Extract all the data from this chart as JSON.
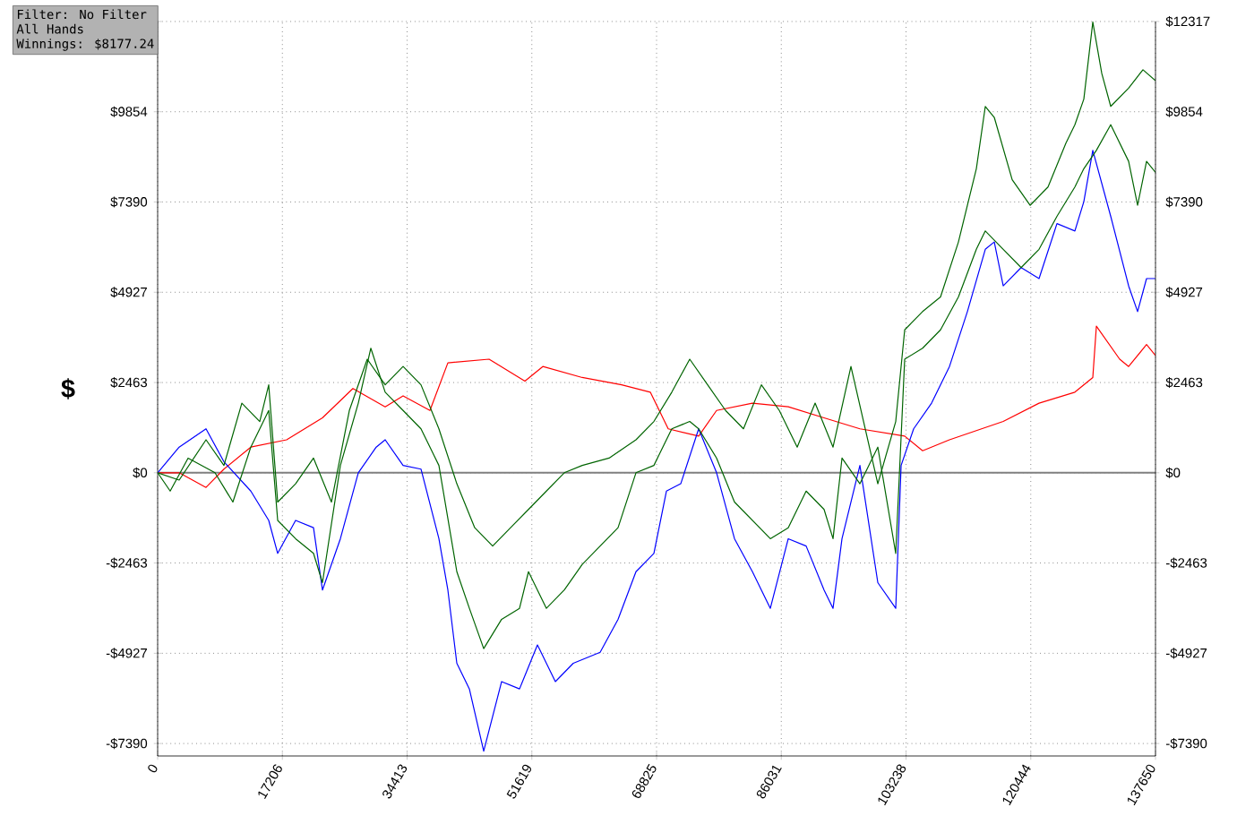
{
  "chart_data": {
    "type": "line",
    "ylabel": "$",
    "annotations": [
      "Filter: No Filter",
      "All Hands",
      "Winnings: $8177.24"
    ],
    "xlim": [
      0,
      137650
    ],
    "xticks": [
      0,
      17206,
      34413,
      51619,
      68825,
      86031,
      103238,
      120444,
      137650
    ],
    "ylim": [
      -7730,
      12317
    ],
    "yticks": [
      {
        "value": -7390,
        "label": "-$7390"
      },
      {
        "value": -4927,
        "label": "-$4927"
      },
      {
        "value": -2463,
        "label": "-$2463"
      },
      {
        "value": 0,
        "label": "$0"
      },
      {
        "value": 2463,
        "label": "$2463"
      },
      {
        "value": 4927,
        "label": "$4927"
      },
      {
        "value": 7390,
        "label": "$7390"
      },
      {
        "value": 9854,
        "label": "$9854"
      },
      {
        "value": 12317,
        "label": null
      }
    ],
    "y2lim": [
      -7730,
      12317
    ],
    "y2ticks": [
      {
        "value": -7390,
        "label": "-$7390"
      },
      {
        "value": -4927,
        "label": "-$4927"
      },
      {
        "value": -2463,
        "label": "-$2463"
      },
      {
        "value": 0,
        "label": "$0"
      },
      {
        "value": 2463,
        "label": "$2463"
      },
      {
        "value": 4927,
        "label": "$4927"
      },
      {
        "value": 7390,
        "label": "$7390"
      },
      {
        "value": 9854,
        "label": "$9854"
      },
      {
        "value": 12317,
        "label": "$12317"
      }
    ],
    "grid": true,
    "marker": "none",
    "line_style": "solid",
    "ref_lines": [
      {
        "axis": "y",
        "value": 0,
        "color": "#808080"
      }
    ],
    "series": [
      {
        "color": "#ff0000",
        "x": [
          0,
          2966,
          6673,
          9144,
          12851,
          17793,
          22736,
          26937,
          31386,
          33857,
          37564,
          40035,
          45719,
          50662,
          53133,
          58570,
          64007,
          67961,
          70432,
          74633,
          77105,
          82047,
          86990,
          91932,
          96875,
          103053,
          105525,
          109231,
          116645,
          121588,
          126531,
          129002,
          129496,
          132709,
          133945,
          136416,
          137650
        ],
        "values": [
          0,
          0,
          -400,
          100,
          700,
          900,
          1500,
          2300,
          1800,
          2100,
          1700,
          3000,
          3100,
          2500,
          2900,
          2600,
          2400,
          2200,
          1200,
          1000,
          1700,
          1900,
          1800,
          1500,
          1200,
          1000,
          600,
          900,
          1400,
          1900,
          2200,
          2600,
          4000,
          3100,
          2900,
          3500,
          3200
        ]
      },
      {
        "color": "#0000ff",
        "x": [
          0,
          2966,
          6673,
          9144,
          12851,
          15322,
          16558,
          19029,
          21500,
          22736,
          25207,
          27679,
          30150,
          31386,
          33857,
          36328,
          38799,
          40035,
          41271,
          43001,
          44978,
          47449,
          49920,
          52392,
          54863,
          57334,
          61041,
          63512,
          65984,
          68455,
          70185,
          72162,
          74633,
          77105,
          79576,
          82047,
          83283,
          84518,
          86990,
          89461,
          91932,
          93168,
          94404,
          96875,
          99346,
          101818,
          102559,
          104289,
          106760,
          109231,
          111703,
          114174,
          115410,
          116645,
          119117,
          121588,
          124059,
          126531,
          127766,
          129002,
          131474,
          133945,
          135181,
          136416,
          137650
        ],
        "values": [
          0,
          700,
          1200,
          300,
          -500,
          -1300,
          -2200,
          -1300,
          -1500,
          -3200,
          -1800,
          0,
          700,
          900,
          200,
          100,
          -1800,
          -3200,
          -5200,
          -5900,
          -7600,
          -5700,
          -5900,
          -4700,
          -5700,
          -5200,
          -4900,
          -4000,
          -2700,
          -2200,
          -500,
          -300,
          1200,
          0,
          -1800,
          -2700,
          -3200,
          -3700,
          -1800,
          -2000,
          -3200,
          -3700,
          -1800,
          200,
          -3000,
          -3700,
          200,
          1200,
          1900,
          2900,
          4400,
          6100,
          6300,
          5100,
          5600,
          5300,
          6800,
          6600,
          7400,
          8800,
          7000,
          5100,
          4400,
          5300,
          5300
        ]
      },
      {
        "color": "#006400",
        "x": [
          0,
          2966,
          6673,
          9144,
          11615,
          14086,
          15322,
          16558,
          19029,
          21500,
          23972,
          26443,
          28914,
          31386,
          33857,
          36328,
          38799,
          41271,
          43742,
          46213,
          48685,
          51156,
          53627,
          56099,
          58570,
          62277,
          65984,
          68455,
          70926,
          73398,
          75869,
          78340,
          80812,
          83283,
          85754,
          88225,
          90697,
          93168,
          95639,
          99346,
          101818,
          103053,
          105525,
          107996,
          110467,
          112938,
          114174,
          115410,
          117881,
          120352,
          122824,
          125295,
          126531,
          127766,
          129002,
          130238,
          131474,
          133945,
          135922,
          137650
        ],
        "values": [
          0,
          -200,
          900,
          200,
          1900,
          1400,
          2400,
          -800,
          -300,
          400,
          -800,
          1700,
          3100,
          2400,
          2900,
          2400,
          1200,
          -300,
          -1500,
          -2000,
          -1500,
          -1000,
          -500,
          0,
          200,
          400,
          900,
          1400,
          2200,
          3100,
          2400,
          1700,
          1200,
          2400,
          1700,
          700,
          1900,
          700,
          2900,
          -300,
          1400,
          3900,
          4400,
          4800,
          6300,
          8300,
          10000,
          9700,
          8000,
          7300,
          7800,
          9000,
          9500,
          10200,
          12300,
          10900,
          10000,
          10500,
          11000,
          10700
        ]
      },
      {
        "color": "#006400",
        "x": [
          0,
          1730,
          4201,
          7908,
          10379,
          12851,
          15322,
          16558,
          19029,
          21500,
          22736,
          25207,
          27679,
          29408,
          31386,
          33857,
          36328,
          38799,
          41271,
          43001,
          44978,
          47449,
          49920,
          51156,
          53627,
          56099,
          58570,
          61041,
          63512,
          65984,
          68455,
          70926,
          73398,
          74633,
          77105,
          79576,
          82047,
          84518,
          86990,
          89461,
          91932,
          93168,
          94404,
          96875,
          99346,
          101818,
          103053,
          105525,
          107996,
          110467,
          112938,
          114174,
          116645,
          119117,
          121588,
          124059,
          126531,
          127766,
          129496,
          131474,
          133945,
          135181,
          136416,
          137650
        ],
        "values": [
          0,
          -500,
          400,
          0,
          -800,
          700,
          1700,
          -1300,
          -1800,
          -2200,
          -3000,
          200,
          1900,
          3400,
          2200,
          1700,
          1200,
          200,
          -2700,
          -3700,
          -4800,
          -4000,
          -3700,
          -2700,
          -3700,
          -3200,
          -2500,
          -2000,
          -1500,
          0,
          200,
          1200,
          1400,
          1200,
          400,
          -800,
          -1300,
          -1800,
          -1500,
          -500,
          -1000,
          -1800,
          400,
          -300,
          700,
          -2200,
          3100,
          3400,
          3900,
          4800,
          6100,
          6600,
          6100,
          5600,
          6100,
          7000,
          7800,
          8300,
          8800,
          9500,
          8500,
          7300,
          8500,
          8200
        ]
      }
    ]
  }
}
